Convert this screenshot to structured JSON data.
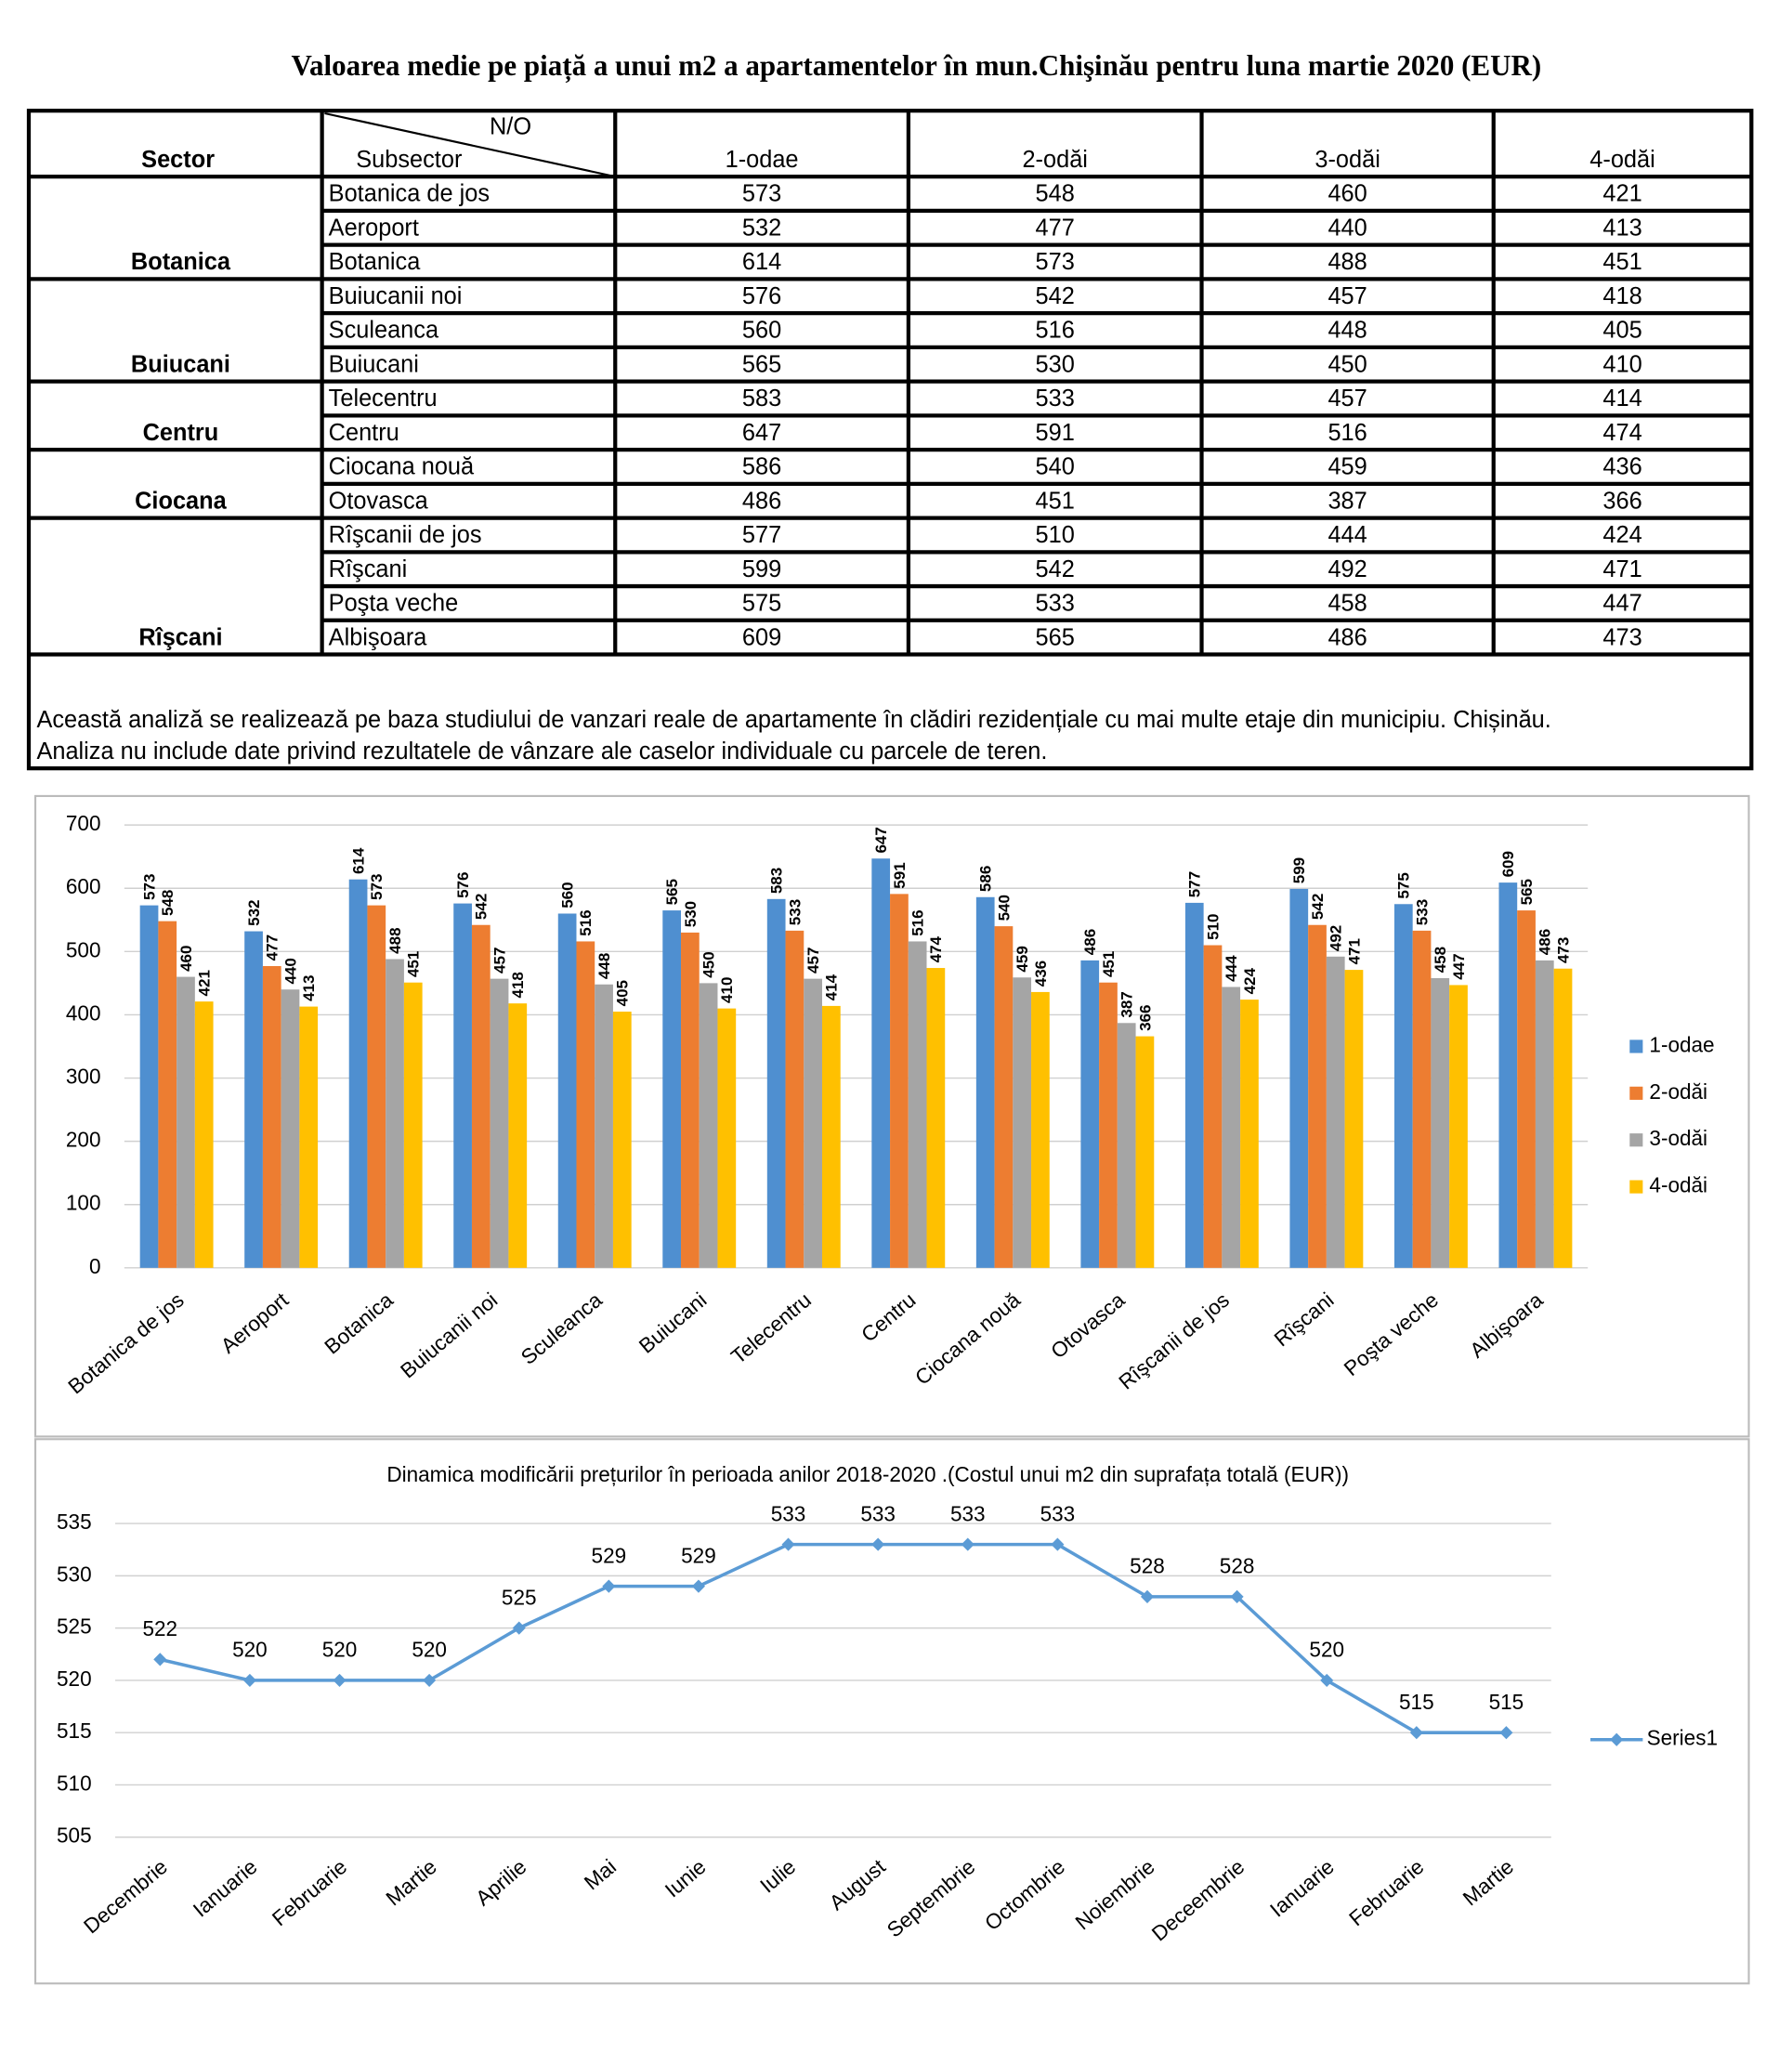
{
  "title": "Valoarea medie pe piață a unui m2 a apartamentelor în mun.Chişinău pentru luna martie 2020 (EUR)",
  "table": {
    "headers": {
      "sector": "Sector",
      "no": "N/O",
      "subsector": "Subsector",
      "columns": [
        "1-odae",
        "2-odăi",
        "3-odăi",
        "4-odăi"
      ]
    },
    "sectors": [
      {
        "name": "Botanica",
        "rows": [
          [
            "Botanica de jos",
            573,
            548,
            460,
            421
          ],
          [
            "Aeroport",
            532,
            477,
            440,
            413
          ],
          [
            "Botanica",
            614,
            573,
            488,
            451
          ]
        ]
      },
      {
        "name": "Buiucani",
        "rows": [
          [
            "Buiucanii noi",
            576,
            542,
            457,
            418
          ],
          [
            "Sculeanca",
            560,
            516,
            448,
            405
          ],
          [
            "Buiucani",
            565,
            530,
            450,
            410
          ]
        ]
      },
      {
        "name": "Centru",
        "rows": [
          [
            "Telecentru",
            583,
            533,
            457,
            414
          ],
          [
            "Centru",
            647,
            591,
            516,
            474
          ]
        ]
      },
      {
        "name": "Ciocana",
        "rows": [
          [
            "Ciocana nouă",
            586,
            540,
            459,
            436
          ],
          [
            "Otovasca",
            486,
            451,
            387,
            366
          ]
        ]
      },
      {
        "name": "Rîşcani",
        "rows": [
          [
            "Rîşcanii de jos",
            577,
            510,
            444,
            424
          ],
          [
            "Rîşcani",
            599,
            542,
            492,
            471
          ],
          [
            "Poşta veche",
            575,
            533,
            458,
            447
          ],
          [
            "Albişoara",
            609,
            565,
            486,
            473
          ]
        ]
      }
    ],
    "note": [
      "Această analiză se realizează pe baza studiului de vanzari reale de apartamente în clădiri rezidențiale cu mai multe etaje din municipiu. Chișinău.",
      "Analiza nu include date privind rezultatele de vânzare ale caselor individuale cu parcele de teren."
    ]
  },
  "chart_data": [
    {
      "type": "bar",
      "categories": [
        "Botanica de jos",
        "Aeroport",
        "Botanica",
        "Buiucanii noi",
        "Sculeanca",
        "Buiucani",
        "Telecentru",
        "Centru",
        "Ciocana nouă",
        "Otovasca",
        "Rîşcanii de jos",
        "Rîşcani",
        "Poşta veche",
        "Albişoara"
      ],
      "series": [
        {
          "name": "1-odae",
          "color": "#4f8fd0",
          "values": [
            573,
            532,
            614,
            576,
            560,
            565,
            583,
            647,
            586,
            486,
            577,
            599,
            575,
            609
          ]
        },
        {
          "name": "2-odăi",
          "color": "#ed7d31",
          "values": [
            548,
            477,
            573,
            542,
            516,
            530,
            533,
            591,
            540,
            451,
            510,
            542,
            533,
            565
          ]
        },
        {
          "name": "3-odăi",
          "color": "#a5a5a5",
          "values": [
            460,
            440,
            488,
            457,
            448,
            450,
            457,
            516,
            459,
            387,
            444,
            492,
            458,
            486
          ]
        },
        {
          "name": "4-odăi",
          "color": "#ffc000",
          "values": [
            421,
            413,
            451,
            418,
            405,
            410,
            414,
            474,
            436,
            366,
            424,
            471,
            447,
            473
          ]
        }
      ],
      "ylim": [
        0,
        700
      ],
      "yticks": [
        0,
        100,
        200,
        300,
        400,
        500,
        600,
        700
      ],
      "grid": true,
      "legend": "right"
    },
    {
      "type": "line",
      "title": "Dinamica modificării prețurilor în perioada anilor  2018-2020 .(Costul unui m2 din suprafața totală (EUR))",
      "categories": [
        "Decembrie",
        "Ianuarie",
        "Februarie",
        "Martie",
        "Aprilie",
        "Mai",
        "Iunie",
        "Iulie",
        "August",
        "Septembrie",
        "Octombrie",
        "Noiembrie",
        "Deceembrie",
        "Ianuarie",
        "Februarie",
        "Martie"
      ],
      "series": [
        {
          "name": "Series1",
          "color": "#5b9bd5",
          "values": [
            522,
            520,
            520,
            520,
            525,
            529,
            529,
            533,
            533,
            533,
            533,
            528,
            528,
            520,
            515,
            515
          ]
        }
      ],
      "ylim": [
        505,
        535
      ],
      "yticks": [
        505,
        510,
        515,
        520,
        525,
        530,
        535
      ],
      "grid": true,
      "legend": "right"
    }
  ]
}
